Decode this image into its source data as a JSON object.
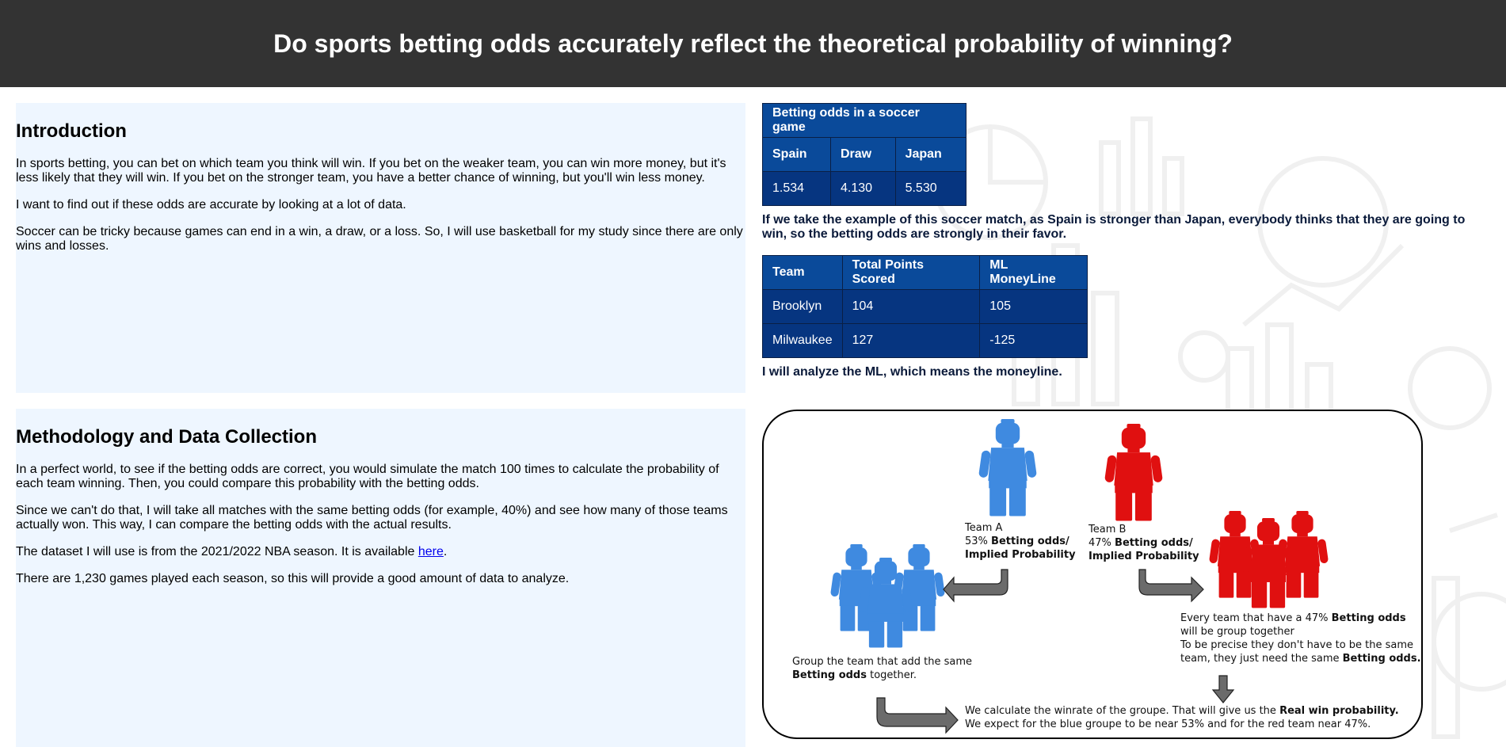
{
  "header": {
    "title": "Do sports betting odds accurately reflect the theoretical probability of winning?"
  },
  "intro": {
    "heading": "Introduction",
    "p1": "In sports betting, you can bet on which team you think will win. If you bet on the weaker team, you can win more money, but it's less likely that they will win. If you bet on the stronger team, you have a better chance of winning, but you'll win less money.",
    "p2": "I want to find out if these odds are accurate by looking at a lot of data.",
    "p3": "Soccer can be tricky because games can end in a win, a draw, or a loss. So, I will use basketball for my study since there are only wins and losses."
  },
  "method": {
    "heading": "Methodology and Data Collection",
    "p1": "In a perfect world, to see if the betting odds are correct, you would simulate the match 100 times to calculate the probability of each team winning. Then, you could compare this probability with the betting odds.",
    "p2": "Since we can't do that, I will take all matches with the same betting odds (for example, 40%) and see how many of those teams actually won. This way, I can compare the betting odds with the actual results.",
    "p3_before": "The dataset I will use is from the 2021/2022 NBA season. It is available ",
    "p3_link": "here",
    "p3_after": ".",
    "p4": "There are 1,230 games played each season, so this will provide a good amount of data to analyze."
  },
  "odds_table": {
    "caption": "Betting odds in a soccer game",
    "headers": [
      "Spain",
      "Draw",
      "Japan"
    ],
    "values": [
      "1.534",
      "4.130",
      "5.530"
    ]
  },
  "note1": "If we take the example of this soccer match, as Spain is stronger than Japan, everybody thinks that they are going to win, so the betting odds are strongly in their favor.",
  "ml_table": {
    "headers": [
      "Team",
      "Total Points Scored",
      "ML MoneyLine"
    ],
    "rows": [
      [
        "Brooklyn",
        "104",
        "105"
      ],
      [
        "Milwaukee",
        "127",
        "-125"
      ]
    ]
  },
  "note2": "I will analyze the ML, which means the moneyline.",
  "diagram": {
    "teamA": {
      "name": "Team A",
      "pct": "53%",
      "bold": "Betting odds/",
      "bold2": "Implied Probability"
    },
    "teamB": {
      "name": "Team B",
      "pct": "47%",
      "bold": "Betting odds/",
      "bold2": "Implied Probability"
    },
    "group_left_1": "Group the team that add the same",
    "group_left_bold": "Betting odds",
    "group_left_2": " together.",
    "group_right_1a": "Every team that have a 47% ",
    "group_right_1b": "Betting odds",
    "group_right_2": "will be group together",
    "group_right_3": "To be precise they don't have to be the same",
    "group_right_4a": "team, they just need the same ",
    "group_right_4b": "Betting odds.",
    "bottom_1a": "We calculate the winrate of the groupe. That will give us the ",
    "bottom_1b": "Real win probability.",
    "bottom_2": "We expect for the blue groupe to be near 53% and for the red team near 47%.",
    "colors": {
      "blue": "#3f8ae0",
      "red": "#e01010",
      "arrow": "#6b6b6b"
    }
  }
}
